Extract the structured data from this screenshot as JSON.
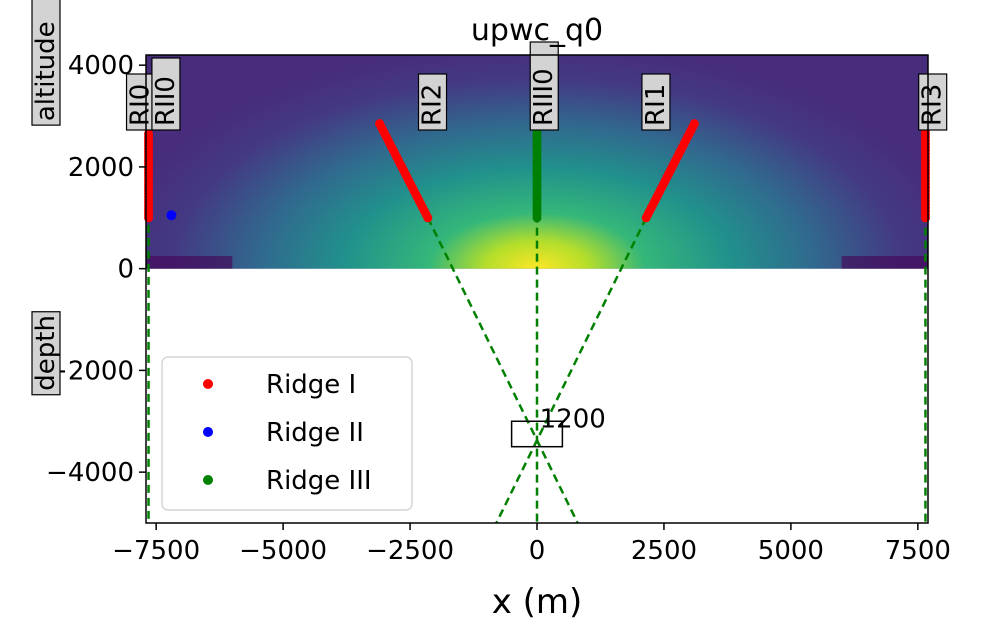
{
  "chart_data": {
    "type": "scatter",
    "title": "upwc_q0",
    "xlabel": "x (m)",
    "ylabel_upper": "altitude",
    "ylabel_lower": "depth",
    "xlim": [
      -7700,
      7700
    ],
    "ylim": [
      -5000,
      4200
    ],
    "xticks": [
      -7500,
      -5000,
      -2500,
      0,
      2500,
      5000,
      7500
    ],
    "xtick_labels": [
      "−7500",
      "−5000",
      "−2500",
      "0",
      "2500",
      "5000",
      "7500"
    ],
    "yticks": [
      -4000,
      -2000,
      0,
      2000,
      4000
    ],
    "ytick_labels": [
      "−4000",
      "−2000",
      "0",
      "2000",
      "4000"
    ],
    "grid": false,
    "legend_position": "lower-left",
    "background_field": {
      "colormap": "viridis",
      "description": "Gaussian-shaped field over altitude, maximum at x=0 near ground",
      "x_range": [
        -7700,
        7700
      ],
      "y_range": [
        0,
        4200
      ]
    },
    "series": [
      {
        "name": "Ridge I",
        "color": "#ff0000",
        "segments": [
          {
            "x": [
              -7650,
              -7650
            ],
            "y": [
              1000,
              2650
            ]
          },
          {
            "x": [
              -3100,
              -2150
            ],
            "y": [
              2850,
              1000
            ]
          },
          {
            "x": [
              2150,
              3100
            ],
            "y": [
              1000,
              2850
            ]
          },
          {
            "x": [
              7650,
              7650
            ],
            "y": [
              1000,
              2850
            ]
          }
        ]
      },
      {
        "name": "Ridge II",
        "color": "#0000ff",
        "points": [
          {
            "x": -7200,
            "y": 1050
          }
        ]
      },
      {
        "name": "Ridge III",
        "color": "#008000",
        "segments": [
          {
            "x": [
              0,
              0
            ],
            "y": [
              1000,
              2850
            ]
          }
        ]
      }
    ],
    "dashed_lines": [
      {
        "x1": -7650,
        "y1": 2650,
        "x2": -7650,
        "y2": -5000,
        "color": "#008000"
      },
      {
        "x1": 7650,
        "y1": 2850,
        "x2": 7650,
        "y2": -5000,
        "color": "#008000"
      },
      {
        "x1": 0,
        "y1": 2850,
        "x2": 0,
        "y2": -5000,
        "color": "#008000"
      },
      {
        "x1": -2150,
        "y1": 1000,
        "x2": 800,
        "y2": -5000,
        "color": "#008000"
      },
      {
        "x1": 2150,
        "y1": 1000,
        "x2": -800,
        "y2": -5000,
        "color": "#008000"
      },
      {
        "x1": 3100,
        "y1": 2850,
        "x2": 2150,
        "y2": 1000,
        "color": "#008000"
      },
      {
        "x1": -3100,
        "y1": 2850,
        "x2": -2150,
        "y2": 1000,
        "color": "#008000"
      }
    ],
    "source_box": {
      "x_min": -500,
      "x_max": 500,
      "y_min": -3500,
      "y_max": -3000,
      "label": "1200"
    },
    "ridge_labels": [
      {
        "text": "RI0",
        "x": -7650
      },
      {
        "text": "RII0",
        "x": -7150
      },
      {
        "text": "RI2",
        "x": -1900
      },
      {
        "text": "RIII0",
        "x": 300
      },
      {
        "text": "RI1",
        "x": 2500
      },
      {
        "text": "RI3",
        "x": 7950
      }
    ]
  }
}
